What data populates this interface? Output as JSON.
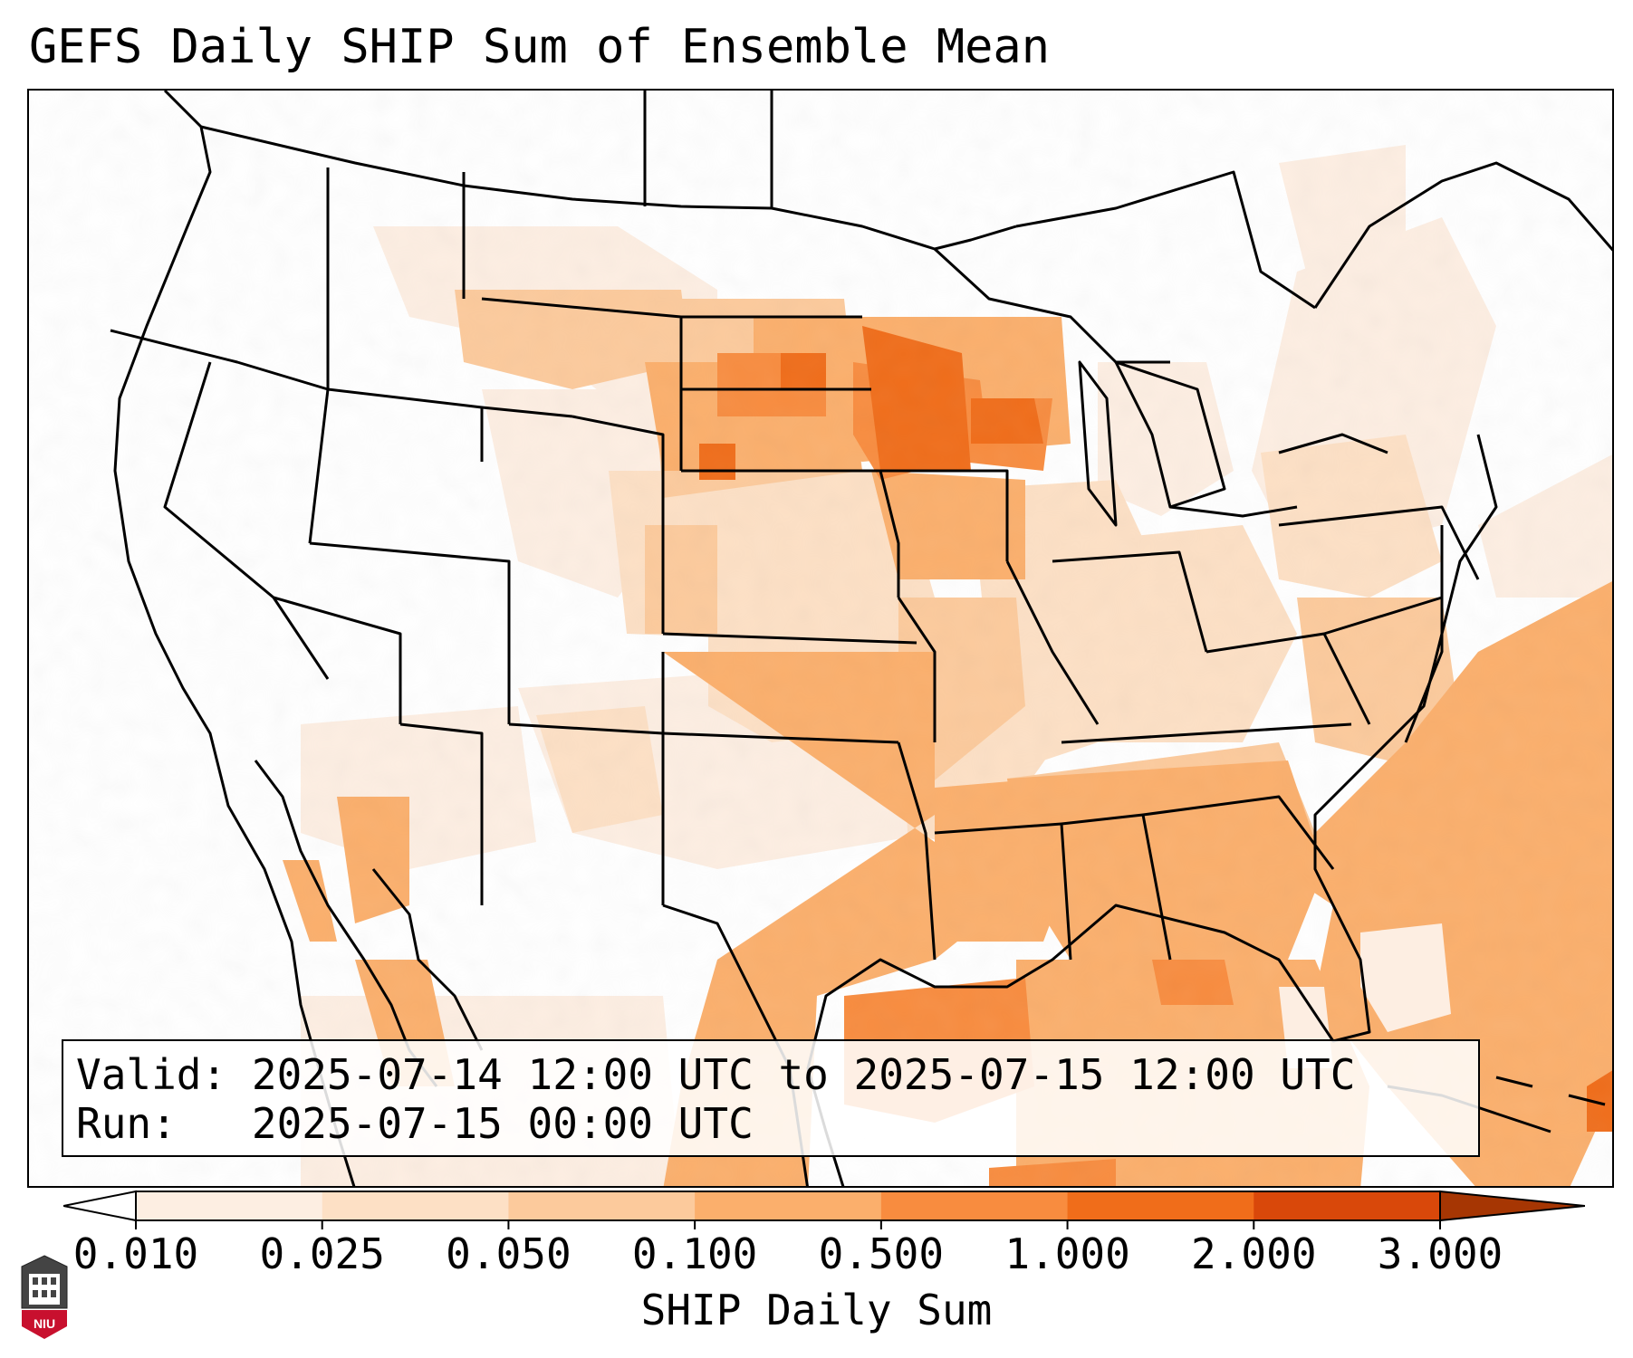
{
  "title": "GEFS Daily SHIP Sum of Ensemble Mean",
  "info": {
    "valid_label": "Valid:",
    "valid_value": "2025-07-14 12:00 UTC to 2025-07-15 12:00 UTC",
    "run_label": "Run:",
    "run_value": "2025-07-15 00:00 UTC"
  },
  "colorbar": {
    "label": "SHIP Daily Sum",
    "ticks": [
      "0.010",
      "0.025",
      "0.050",
      "0.100",
      "0.500",
      "1.000",
      "2.000",
      "3.000"
    ],
    "colors": [
      "#fdeee2",
      "#fde0c5",
      "#fcca9c",
      "#fbaf6c",
      "#f88c3f",
      "#f06d1a",
      "#d9480a"
    ],
    "extend": "both"
  },
  "logo": {
    "text": "NIU",
    "icon": "university-logo-icon"
  },
  "map_data": {
    "projection": "lambert-conformal",
    "region": "CONUS",
    "shaded_regions": [
      {
        "area": "Northern Plains (ND, SD, MN)",
        "level": "0.500-1.000"
      },
      {
        "area": "Wisconsin",
        "level": "0.500-1.000"
      },
      {
        "area": "Montana",
        "level": "0.050-0.100"
      },
      {
        "area": "Nebraska / Iowa",
        "level": "0.100-0.500"
      },
      {
        "area": "Gulf of Mexico",
        "level": "0.500-1.000"
      },
      {
        "area": "Southeast US / Gulf Coast",
        "level": "0.100-0.500"
      },
      {
        "area": "Western Atlantic",
        "level": "0.100-0.500"
      },
      {
        "area": "Mid-Mississippi Valley",
        "level": "0.050-0.100"
      },
      {
        "area": "Southwest / Gulf of California",
        "level": "0.100-0.500"
      },
      {
        "area": "Northeast US",
        "level": "0.025-0.050"
      }
    ]
  }
}
